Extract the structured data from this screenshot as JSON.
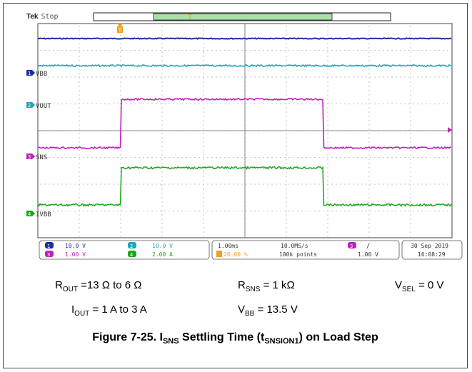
{
  "scope": {
    "brand": "Tek",
    "run_state": "Stop",
    "channel_labels": {
      "ch1": "VBB",
      "ch2": "VOUT",
      "ch3": "SNS",
      "ch4": "IVBB"
    },
    "readouts": {
      "ch1_scale": "10.0 V",
      "ch2_scale": "10.0 V",
      "ch3_scale": "1.00 V",
      "ch4_scale": "2.00 A",
      "timebase": "1.00ms",
      "sample_rate": "10.0MS/s",
      "record_length": "100k points",
      "trigger_level": "1.00 V",
      "trigger_position": "20.00 %",
      "date": "30 Sep 2019",
      "time": "16:08:29",
      "ch1_num": "1",
      "ch2_num": "2",
      "ch3_num": "3",
      "ch4_num": "4",
      "trigger_src": "3",
      "trigger_slope": "∕"
    },
    "colors": {
      "ch1": "#1a2fa0",
      "ch2": "#1aa8b8",
      "ch3": "#c020c0",
      "ch4": "#18a818",
      "trigger": "#f0a020"
    }
  },
  "conditions": {
    "r_out_prefix": "R",
    "r_out_sub": "OUT",
    "r_out_value": " =13 Ω to 6 Ω",
    "r_sns_prefix": "R",
    "r_sns_sub": "SNS",
    "r_sns_value": " = 1 kΩ",
    "v_sel_prefix": "V",
    "v_sel_sub": "SEL",
    "v_sel_value": " = 0 V",
    "i_out_prefix": "I",
    "i_out_sub": "OUT",
    "i_out_value": " = 1 A to 3 A",
    "v_bb_prefix": "V",
    "v_bb_sub": "BB",
    "v_bb_value": " = 13.5 V"
  },
  "figure": {
    "label": "Figure 7-25. I",
    "sns_sub": "SNS",
    "middle": " Settling Time (t",
    "t_sub": "SNSION1",
    "suffix": ") on Load Step"
  }
}
